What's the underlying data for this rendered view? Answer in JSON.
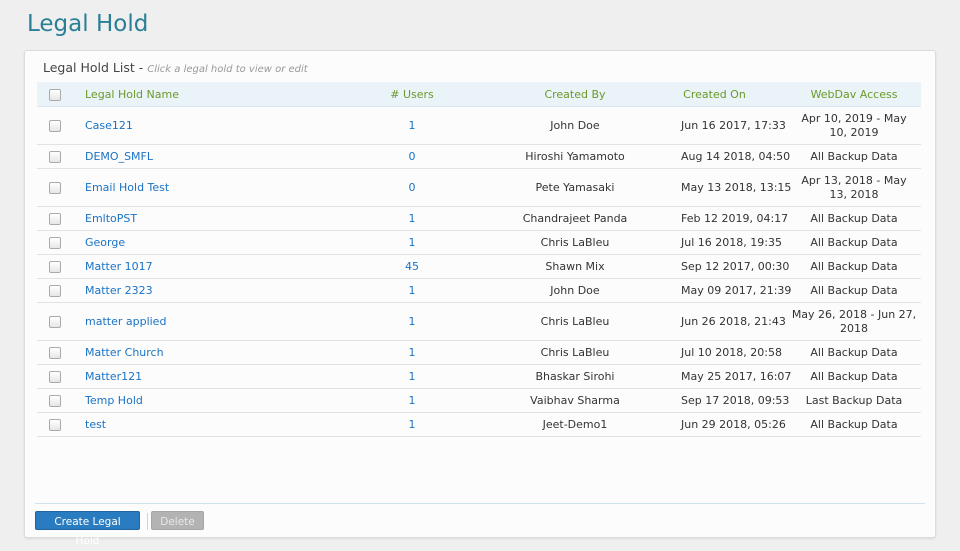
{
  "page_title": "Legal Hold",
  "panel": {
    "title": "Legal Hold List",
    "separator": "-",
    "hint": "Click a legal hold to view or edit"
  },
  "columns": [
    "Legal Hold Name",
    "# Users",
    "Created By",
    "Created On",
    "WebDav Access"
  ],
  "rows": [
    {
      "name": "Case121",
      "users": "1",
      "created_by": "John Doe",
      "created_on": "Jun 16 2017, 17:33",
      "webdav": "Apr 10, 2019 - May 10, 2019"
    },
    {
      "name": "DEMO_SMFL",
      "users": "0",
      "created_by": "Hiroshi Yamamoto",
      "created_on": "Aug 14 2018, 04:50",
      "webdav": "All Backup Data"
    },
    {
      "name": "Email Hold Test",
      "users": "0",
      "created_by": "Pete Yamasaki",
      "created_on": "May 13 2018, 13:15",
      "webdav": "Apr 13, 2018 - May 13, 2018"
    },
    {
      "name": "EmltoPST",
      "users": "1",
      "created_by": "Chandrajeet Panda",
      "created_on": "Feb 12 2019, 04:17",
      "webdav": "All Backup Data"
    },
    {
      "name": "George",
      "users": "1",
      "created_by": "Chris LaBleu",
      "created_on": "Jul 16 2018, 19:35",
      "webdav": "All Backup Data"
    },
    {
      "name": "Matter 1017",
      "users": "45",
      "created_by": "Shawn Mix",
      "created_on": "Sep 12 2017, 00:30",
      "webdav": "All Backup Data"
    },
    {
      "name": "Matter 2323",
      "users": "1",
      "created_by": "John Doe",
      "created_on": "May 09 2017, 21:39",
      "webdav": "All Backup Data"
    },
    {
      "name": "matter applied",
      "users": "1",
      "created_by": "Chris LaBleu",
      "created_on": "Jun 26 2018, 21:43",
      "webdav": "May 26, 2018 - Jun 27, 2018"
    },
    {
      "name": "Matter Church",
      "users": "1",
      "created_by": "Chris LaBleu",
      "created_on": "Jul 10 2018, 20:58",
      "webdav": "All Backup Data"
    },
    {
      "name": "Matter121",
      "users": "1",
      "created_by": "Bhaskar Sirohi",
      "created_on": "May 25 2017, 16:07",
      "webdav": "All Backup Data"
    },
    {
      "name": "Temp Hold",
      "users": "1",
      "created_by": "Vaibhav Sharma",
      "created_on": "Sep 17 2018, 09:53",
      "webdav": "Last Backup Data"
    },
    {
      "name": "test",
      "users": "1",
      "created_by": "Jeet-Demo1",
      "created_on": "Jun 29 2018, 05:26",
      "webdav": "All Backup Data"
    }
  ],
  "buttons": {
    "create": "Create Legal Hold",
    "delete": "Delete"
  },
  "colors": {
    "title": "#2a7f96",
    "link": "#1a73c4",
    "header_text": "#6a9a2a",
    "primary_button": "#2a7cc0"
  }
}
